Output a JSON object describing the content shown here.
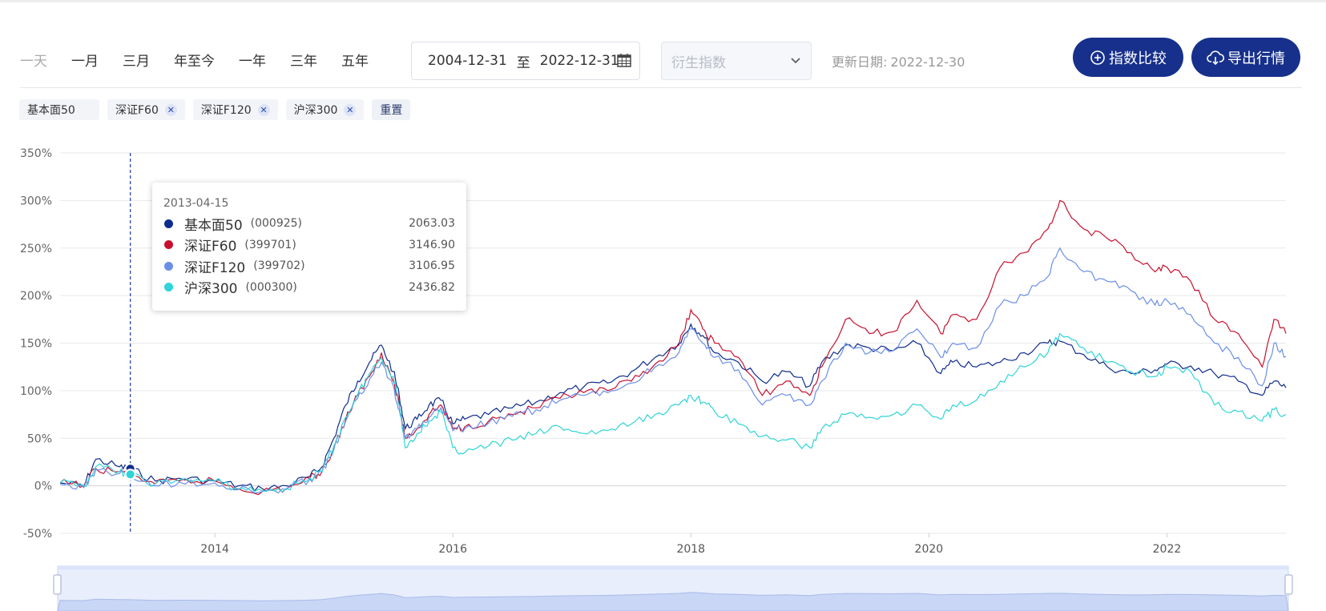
{
  "toolbar": {
    "periods": [
      "一天",
      "一月",
      "三月",
      "年至今",
      "一年",
      "三年",
      "五年"
    ],
    "date_start": "2004-12-31",
    "date_sep": "至",
    "date_end": "2022-12-31",
    "derived_placeholder": "衍生指数",
    "update_label": "更新日期:",
    "update_date": "2022-12-30",
    "compare_label": "指数比较",
    "export_label": "导出行情"
  },
  "tags": [
    {
      "label": "基本面50",
      "removable": false
    },
    {
      "label": "深证F60",
      "removable": true
    },
    {
      "label": "深证F120",
      "removable": true
    },
    {
      "label": "沪深300",
      "removable": true
    }
  ],
  "reset_label": "重置",
  "tooltip": {
    "date": "2013-04-15",
    "rows": [
      {
        "name": "基本面50",
        "code": "(000925)",
        "value": "2063.03",
        "color": "#0f2c8c"
      },
      {
        "name": "深证F60",
        "code": "(399701)",
        "value": "3146.90",
        "color": "#c8102e"
      },
      {
        "name": "深证F120",
        "code": "(399702)",
        "value": "3106.95",
        "color": "#6a8fe6"
      },
      {
        "name": "沪深300",
        "code": "(000300)",
        "value": "2436.82",
        "color": "#2fd4d8"
      }
    ]
  },
  "chart_data": {
    "type": "line",
    "xlabel": "",
    "ylabel": "",
    "xlim": [
      2012.7,
      2023.0
    ],
    "ylim": [
      -50,
      350
    ],
    "x_ticks": [
      2014,
      2016,
      2018,
      2020,
      2022
    ],
    "y_ticks": [
      -50,
      0,
      50,
      100,
      150,
      200,
      250,
      300,
      350
    ],
    "y_tick_labels": [
      "-50%",
      "0%",
      "50%",
      "100%",
      "150%",
      "200%",
      "250%",
      "300%",
      "350%"
    ],
    "x_tick_labels": [
      "2014",
      "2016",
      "2018",
      "2020",
      "2022"
    ],
    "cursor_x": 2013.29,
    "series": [
      {
        "name": "基本面50",
        "color": "#0f2c8c",
        "x": [
          2012.7,
          2012.9,
          2013.0,
          2013.2,
          2013.29,
          2013.5,
          2013.7,
          2014.0,
          2014.2,
          2014.4,
          2014.6,
          2014.8,
          2014.9,
          2015.0,
          2015.1,
          2015.2,
          2015.3,
          2015.4,
          2015.5,
          2015.55,
          2015.6,
          2015.7,
          2015.8,
          2015.9,
          2016.0,
          2016.1,
          2016.3,
          2016.5,
          2016.7,
          2016.9,
          2017.1,
          2017.3,
          2017.5,
          2017.7,
          2017.9,
          2018.0,
          2018.1,
          2018.2,
          2018.4,
          2018.6,
          2018.8,
          2019.0,
          2019.1,
          2019.3,
          2019.5,
          2019.7,
          2019.9,
          2020.1,
          2020.2,
          2020.4,
          2020.6,
          2020.8,
          2021.0,
          2021.1,
          2021.3,
          2021.5,
          2021.7,
          2021.9,
          2022.0,
          2022.2,
          2022.4,
          2022.6,
          2022.8,
          2022.9,
          2023.0
        ],
        "y": [
          3,
          0,
          28,
          20,
          18,
          5,
          8,
          5,
          0,
          -3,
          0,
          10,
          20,
          50,
          85,
          110,
          130,
          148,
          120,
          95,
          60,
          70,
          85,
          90,
          65,
          70,
          75,
          82,
          88,
          98,
          104,
          108,
          120,
          135,
          150,
          170,
          158,
          140,
          130,
          110,
          120,
          105,
          130,
          148,
          145,
          142,
          150,
          118,
          130,
          125,
          130,
          140,
          150,
          152,
          138,
          125,
          118,
          122,
          128,
          126,
          118,
          110,
          95,
          110,
          103
        ]
      },
      {
        "name": "深证F60",
        "color": "#c8102e",
        "x": [
          2012.7,
          2012.9,
          2013.0,
          2013.2,
          2013.29,
          2013.5,
          2013.7,
          2014.0,
          2014.2,
          2014.4,
          2014.6,
          2014.8,
          2014.9,
          2015.0,
          2015.1,
          2015.2,
          2015.3,
          2015.4,
          2015.5,
          2015.55,
          2015.6,
          2015.7,
          2015.8,
          2015.9,
          2016.0,
          2016.1,
          2016.3,
          2016.5,
          2016.7,
          2016.9,
          2017.1,
          2017.3,
          2017.5,
          2017.7,
          2017.9,
          2018.0,
          2018.1,
          2018.2,
          2018.4,
          2018.6,
          2018.8,
          2019.0,
          2019.1,
          2019.3,
          2019.5,
          2019.7,
          2019.9,
          2020.1,
          2020.2,
          2020.4,
          2020.6,
          2020.8,
          2021.0,
          2021.1,
          2021.3,
          2021.5,
          2021.7,
          2021.9,
          2022.0,
          2022.2,
          2022.4,
          2022.6,
          2022.8,
          2022.9,
          2023.0
        ],
        "y": [
          3,
          0,
          18,
          15,
          12,
          2,
          5,
          5,
          -3,
          -6,
          -3,
          8,
          15,
          40,
          70,
          95,
          115,
          140,
          110,
          85,
          50,
          60,
          75,
          85,
          60,
          62,
          68,
          75,
          82,
          92,
          98,
          100,
          110,
          128,
          148,
          185,
          165,
          150,
          135,
          95,
          110,
          95,
          125,
          175,
          160,
          162,
          195,
          160,
          180,
          175,
          230,
          245,
          270,
          300,
          270,
          260,
          245,
          225,
          230,
          215,
          175,
          160,
          125,
          175,
          160
        ]
      },
      {
        "name": "深证F120",
        "color": "#6a8fe6",
        "x": [
          2012.7,
          2012.9,
          2013.0,
          2013.2,
          2013.29,
          2013.5,
          2013.7,
          2014.0,
          2014.2,
          2014.4,
          2014.6,
          2014.8,
          2014.9,
          2015.0,
          2015.1,
          2015.2,
          2015.3,
          2015.4,
          2015.5,
          2015.55,
          2015.6,
          2015.7,
          2015.8,
          2015.9,
          2016.0,
          2016.1,
          2016.3,
          2016.5,
          2016.7,
          2016.9,
          2017.1,
          2017.3,
          2017.5,
          2017.7,
          2017.9,
          2018.0,
          2018.1,
          2018.2,
          2018.4,
          2018.6,
          2018.8,
          2019.0,
          2019.1,
          2019.3,
          2019.5,
          2019.7,
          2019.9,
          2020.1,
          2020.2,
          2020.4,
          2020.6,
          2020.8,
          2021.0,
          2021.1,
          2021.3,
          2021.5,
          2021.7,
          2021.9,
          2022.0,
          2022.2,
          2022.4,
          2022.6,
          2022.8,
          2022.9,
          2023.0
        ],
        "y": [
          2,
          -2,
          17,
          13,
          11,
          0,
          4,
          3,
          -4,
          -6,
          -4,
          7,
          14,
          38,
          68,
          92,
          112,
          130,
          105,
          80,
          50,
          60,
          72,
          82,
          58,
          60,
          66,
          73,
          80,
          90,
          95,
          98,
          108,
          125,
          140,
          165,
          150,
          135,
          122,
          85,
          95,
          85,
          110,
          150,
          140,
          142,
          165,
          135,
          150,
          145,
          190,
          200,
          220,
          250,
          225,
          215,
          205,
          190,
          195,
          180,
          150,
          135,
          105,
          150,
          136
        ]
      },
      {
        "name": "沪深300",
        "color": "#2fd4d8",
        "x": [
          2012.7,
          2012.9,
          2013.0,
          2013.2,
          2013.29,
          2013.5,
          2013.7,
          2014.0,
          2014.2,
          2014.4,
          2014.6,
          2014.8,
          2014.9,
          2015.0,
          2015.1,
          2015.2,
          2015.3,
          2015.4,
          2015.5,
          2015.55,
          2015.6,
          2015.7,
          2015.8,
          2015.9,
          2016.0,
          2016.1,
          2016.3,
          2016.5,
          2016.7,
          2016.9,
          2017.1,
          2017.3,
          2017.5,
          2017.7,
          2017.9,
          2018.0,
          2018.1,
          2018.2,
          2018.4,
          2018.6,
          2018.8,
          2019.0,
          2019.1,
          2019.3,
          2019.5,
          2019.7,
          2019.9,
          2020.1,
          2020.2,
          2020.4,
          2020.6,
          2020.8,
          2021.0,
          2021.1,
          2021.3,
          2021.5,
          2021.7,
          2021.9,
          2022.0,
          2022.2,
          2022.4,
          2022.6,
          2022.8,
          2022.9,
          2023.0
        ],
        "y": [
          3,
          0,
          20,
          15,
          12,
          2,
          6,
          5,
          -3,
          -5,
          -3,
          8,
          15,
          42,
          72,
          96,
          118,
          135,
          115,
          85,
          40,
          55,
          68,
          78,
          40,
          35,
          42,
          48,
          55,
          62,
          55,
          58,
          65,
          75,
          85,
          95,
          88,
          78,
          65,
          52,
          48,
          40,
          60,
          75,
          72,
          75,
          85,
          70,
          85,
          90,
          110,
          125,
          140,
          160,
          145,
          130,
          120,
          115,
          125,
          120,
          85,
          78,
          68,
          80,
          75
        ]
      }
    ]
  }
}
